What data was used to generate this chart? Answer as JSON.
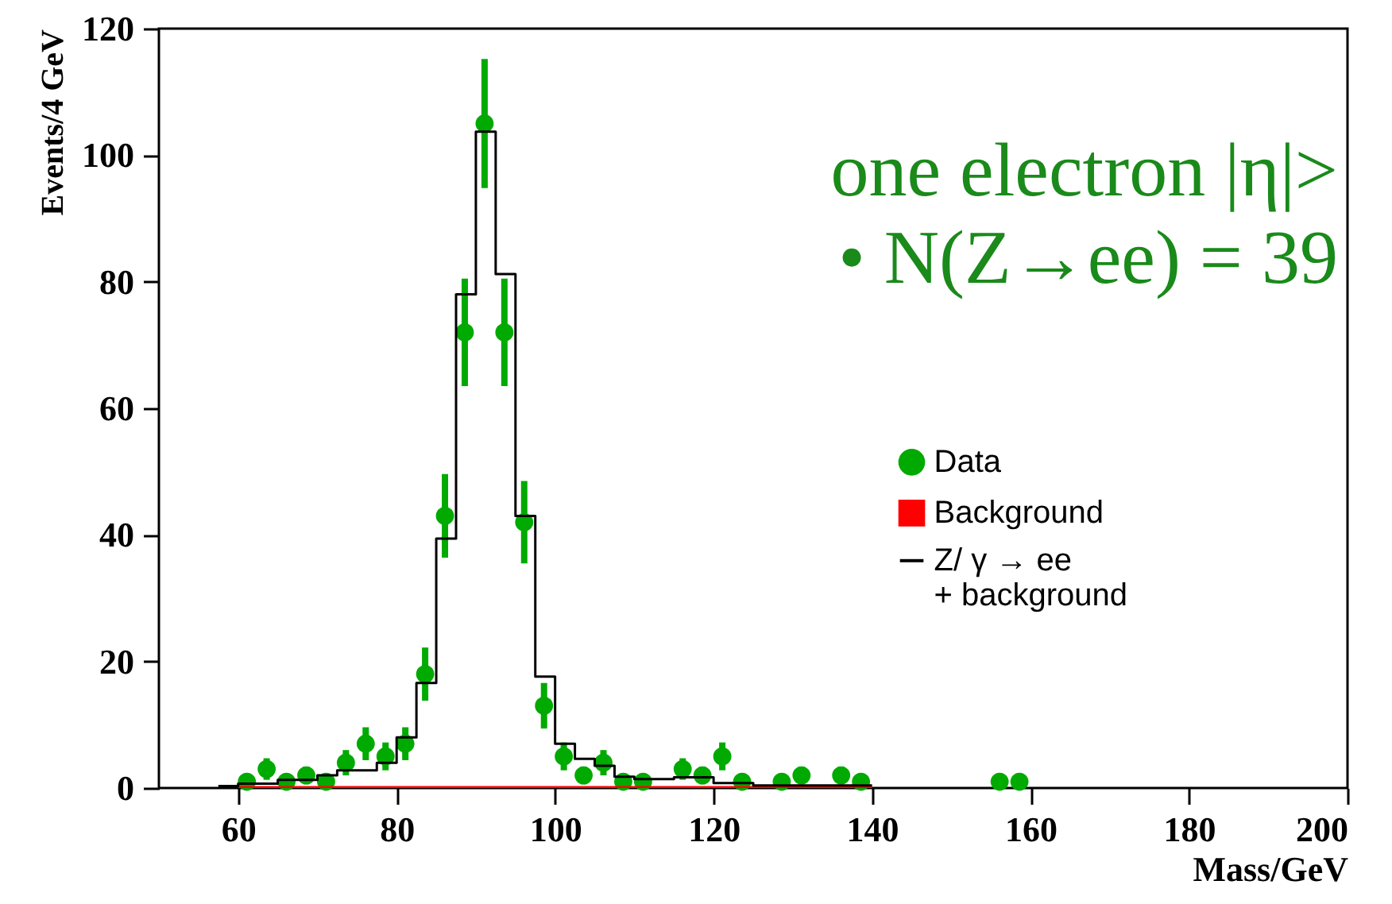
{
  "chart_data": {
    "type": "scatter",
    "xlabel": "Mass/GeV",
    "ylabel": "Events/4 GeV",
    "xlim": [
      50,
      200
    ],
    "xticks": [
      60,
      80,
      100,
      120,
      140,
      160,
      180,
      200
    ],
    "ylim": [
      0,
      120
    ],
    "yticks": [
      0,
      20,
      40,
      60,
      80,
      100,
      120
    ],
    "legend": "right",
    "annotations": [
      "one electron |η|>",
      "• N(Z→ee) = 39"
    ],
    "series": [
      {
        "name": "Data",
        "color": "#00aa00",
        "x": [
          61.1,
          63.6,
          66.1,
          68.6,
          71.1,
          73.6,
          76.1,
          78.6,
          81.1,
          83.6,
          86.1,
          88.6,
          91.1,
          93.6,
          96.1,
          98.6,
          101.1,
          103.6,
          106.1,
          108.6,
          111.1,
          116.1,
          118.6,
          121.1,
          123.6,
          128.6,
          131.1,
          136.1,
          138.6,
          156.1,
          158.6
        ],
        "values": [
          1,
          3,
          1,
          2,
          1,
          4,
          7,
          5,
          7,
          18,
          43,
          72,
          105,
          72,
          42,
          13,
          5,
          2,
          4,
          1,
          1,
          3,
          2,
          5,
          1,
          1,
          2,
          2,
          1,
          1,
          1
        ],
        "errors": [
          1,
          1.7,
          1,
          1.4,
          1,
          2,
          2.6,
          2.2,
          2.6,
          4.2,
          6.6,
          8.5,
          10.2,
          8.5,
          6.5,
          3.6,
          2.2,
          1.4,
          2,
          1,
          1,
          1.7,
          1.4,
          2.2,
          1,
          1,
          1.4,
          1.4,
          1,
          1,
          1
        ]
      },
      {
        "name": "Background",
        "type": "area",
        "color": "#ff0000",
        "x": [
          60,
          140
        ],
        "values": [
          0.3,
          0.3
        ]
      },
      {
        "name": "Z/ γ → ee\n+ background",
        "type": "histogram",
        "color": "#000000",
        "bins": [
          57.5,
          60,
          62.5,
          65,
          67.5,
          70,
          72.5,
          75,
          77.5,
          80,
          82.5,
          85,
          87.5,
          90,
          92.5,
          95,
          97.5,
          100,
          102.5,
          105,
          107.5,
          110,
          112.5,
          115,
          117.5,
          120,
          122.5,
          125,
          127.5,
          130,
          132.5,
          135,
          137.5,
          140
        ],
        "values": [
          0.3,
          0.7,
          0.7,
          1.3,
          1.3,
          2,
          2.8,
          2.8,
          4,
          8,
          16.6,
          39.4,
          78,
          103.7,
          81.2,
          43,
          17.6,
          7,
          4.6,
          3.5,
          1.8,
          1.4,
          1.4,
          1.7,
          1.7,
          0.8,
          0.8,
          0.4,
          0.4,
          0.4,
          0.4,
          0.4,
          0.4
        ]
      }
    ]
  }
}
